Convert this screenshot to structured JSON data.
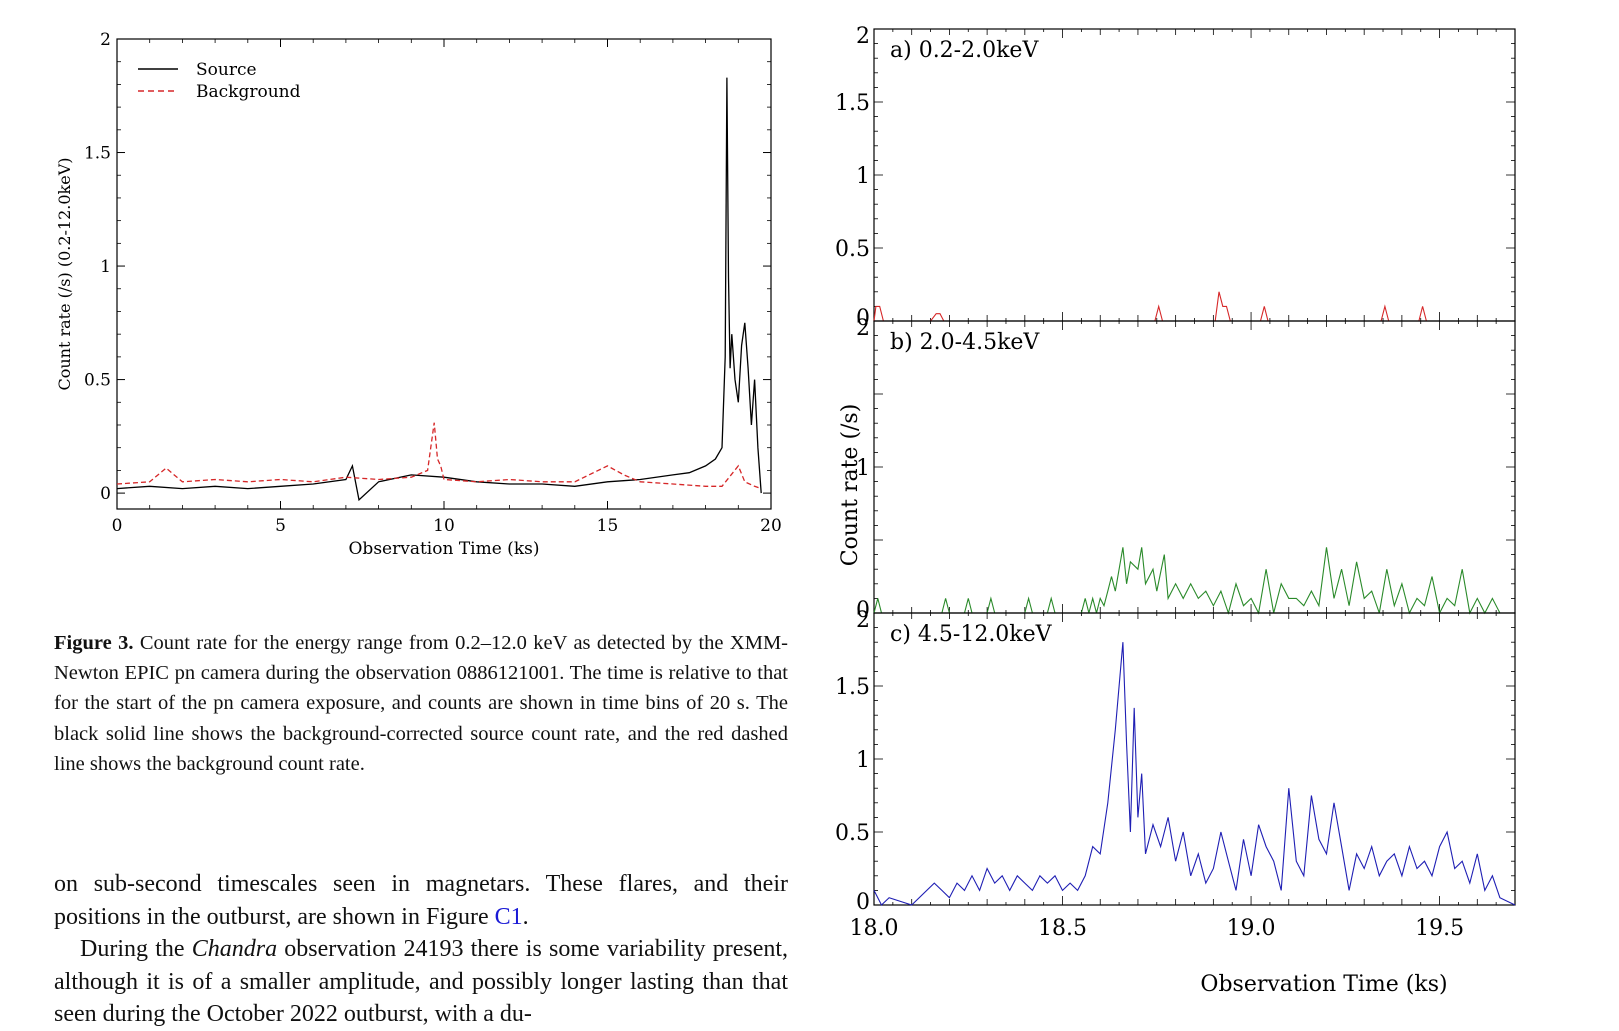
{
  "figure3": {
    "chart_data": {
      "type": "line",
      "xlabel": "Observation Time (ks)",
      "ylabel": "Count rate (/s) (0.2-12.0keV)",
      "xlim": [
        0,
        20
      ],
      "ylim": [
        -0.07,
        2
      ],
      "xticks": [
        "0",
        "5",
        "10",
        "15",
        "20"
      ],
      "yticks": [
        "0",
        "0.5",
        "1",
        "1.5",
        "2"
      ],
      "legend_position": "top-left",
      "series": [
        {
          "name": "Source",
          "color": "#000000",
          "style": "solid",
          "x": [
            0,
            1,
            2,
            3,
            4,
            5,
            6,
            7,
            7.2,
            7.4,
            8,
            9,
            10,
            11,
            12,
            13,
            14,
            15,
            16,
            17,
            17.5,
            18,
            18.3,
            18.5,
            18.6,
            18.65,
            18.7,
            18.75,
            18.8,
            18.9,
            19.0,
            19.1,
            19.2,
            19.3,
            19.4,
            19.5,
            19.6,
            19.7
          ],
          "y": [
            0.02,
            0.03,
            0.02,
            0.03,
            0.02,
            0.03,
            0.04,
            0.06,
            0.12,
            -0.03,
            0.05,
            0.08,
            0.07,
            0.05,
            0.04,
            0.04,
            0.03,
            0.05,
            0.06,
            0.08,
            0.09,
            0.12,
            0.15,
            0.2,
            0.6,
            1.83,
            0.95,
            0.55,
            0.7,
            0.5,
            0.4,
            0.65,
            0.75,
            0.55,
            0.3,
            0.5,
            0.2,
            0.0
          ]
        },
        {
          "name": "Background",
          "color": "#d62728",
          "style": "dashed",
          "x": [
            0,
            1,
            1.5,
            2,
            3,
            4,
            5,
            6,
            7,
            8,
            9,
            9.5,
            9.7,
            9.8,
            9.9,
            10,
            11,
            12,
            13,
            14,
            15,
            15.5,
            16,
            17,
            18,
            18.5,
            19,
            19.2,
            19.5,
            19.7
          ],
          "y": [
            0.04,
            0.05,
            0.11,
            0.05,
            0.06,
            0.05,
            0.06,
            0.05,
            0.07,
            0.06,
            0.07,
            0.1,
            0.31,
            0.15,
            0.12,
            0.06,
            0.05,
            0.06,
            0.05,
            0.05,
            0.12,
            0.08,
            0.05,
            0.04,
            0.03,
            0.03,
            0.12,
            0.05,
            0.03,
            0.02
          ]
        }
      ]
    }
  },
  "figure_right": {
    "chart_data": [
      {
        "type": "line",
        "panel_label": "a) 0.2-2.0keV",
        "color": "#d62728",
        "xlim": [
          18.0,
          19.7
        ],
        "ylim": [
          0,
          2
        ],
        "yticks": [
          "0",
          "0.5",
          "1",
          "1.5",
          "2"
        ],
        "x": [
          18.0,
          18.005,
          18.015,
          18.025,
          18.15,
          18.165,
          18.175,
          18.185,
          18.745,
          18.755,
          18.765,
          18.905,
          18.915,
          18.925,
          18.935,
          18.945,
          19.025,
          19.035,
          19.045,
          19.345,
          19.355,
          19.365,
          19.445,
          19.455,
          19.465,
          19.7
        ],
        "y": [
          0,
          0.1,
          0.1,
          0,
          0,
          0.05,
          0.05,
          0,
          0,
          0.1,
          0,
          0,
          0.2,
          0.1,
          0.1,
          0,
          0,
          0.1,
          0,
          0,
          0.1,
          0,
          0,
          0.1,
          0,
          0
        ]
      },
      {
        "type": "line",
        "panel_label": "b) 2.0-4.5keV",
        "color": "#2a8a2a",
        "xlim": [
          18.0,
          19.7
        ],
        "ylim": [
          0,
          2
        ],
        "yticks": [
          "0",
          "1",
          "2"
        ],
        "ylabel": "Count rate (/s)",
        "x": [
          18.0,
          18.01,
          18.02,
          18.18,
          18.19,
          18.2,
          18.24,
          18.25,
          18.26,
          18.3,
          18.31,
          18.32,
          18.4,
          18.41,
          18.42,
          18.46,
          18.47,
          18.48,
          18.55,
          18.56,
          18.57,
          18.58,
          18.59,
          18.6,
          18.61,
          18.62,
          18.63,
          18.64,
          18.66,
          18.67,
          18.68,
          18.7,
          18.71,
          18.72,
          18.74,
          18.75,
          18.77,
          18.78,
          18.8,
          18.82,
          18.84,
          18.86,
          18.88,
          18.9,
          18.92,
          18.94,
          18.96,
          18.98,
          19.0,
          19.02,
          19.04,
          19.06,
          19.08,
          19.1,
          19.12,
          19.14,
          19.16,
          19.18,
          19.2,
          19.22,
          19.24,
          19.26,
          19.28,
          19.3,
          19.32,
          19.34,
          19.36,
          19.38,
          19.4,
          19.42,
          19.44,
          19.46,
          19.48,
          19.5,
          19.52,
          19.54,
          19.56,
          19.58,
          19.6,
          19.62,
          19.64,
          19.66,
          19.7
        ],
        "y": [
          0,
          0.1,
          0,
          0,
          0.1,
          0,
          0,
          0.1,
          0,
          0,
          0.1,
          0,
          0,
          0.1,
          0,
          0,
          0.1,
          0,
          0,
          0.1,
          0,
          0.1,
          0,
          0.1,
          0.05,
          0.15,
          0.25,
          0.15,
          0.45,
          0.2,
          0.35,
          0.3,
          0.45,
          0.2,
          0.3,
          0.15,
          0.4,
          0.1,
          0.2,
          0.1,
          0.2,
          0.1,
          0.15,
          0.05,
          0.15,
          0,
          0.2,
          0.05,
          0.1,
          0,
          0.3,
          0,
          0.2,
          0.1,
          0.1,
          0.05,
          0.15,
          0.05,
          0.45,
          0.1,
          0.3,
          0.05,
          0.35,
          0.1,
          0.15,
          0,
          0.3,
          0.05,
          0.2,
          0,
          0.1,
          0.05,
          0.25,
          0,
          0.1,
          0.05,
          0.3,
          0,
          0.1,
          0,
          0.1,
          0,
          0
        ]
      },
      {
        "type": "line",
        "panel_label": "c) 4.5-12.0keV",
        "color": "#1f1fb4",
        "xlim": [
          18.0,
          19.7
        ],
        "ylim": [
          0,
          2
        ],
        "xticks": [
          "18.0",
          "18.5",
          "19.0",
          "19.5"
        ],
        "yticks": [
          "0",
          "0.5",
          "1",
          "1.5",
          "2"
        ],
        "xlabel": "Observation Time (ks)",
        "x": [
          18.0,
          18.02,
          18.04,
          18.1,
          18.16,
          18.18,
          18.2,
          18.22,
          18.24,
          18.26,
          18.28,
          18.3,
          18.32,
          18.34,
          18.36,
          18.38,
          18.4,
          18.42,
          18.44,
          18.46,
          18.48,
          18.5,
          18.52,
          18.54,
          18.56,
          18.58,
          18.6,
          18.62,
          18.64,
          18.66,
          18.67,
          18.68,
          18.69,
          18.7,
          18.71,
          18.72,
          18.74,
          18.76,
          18.78,
          18.8,
          18.82,
          18.84,
          18.86,
          18.88,
          18.9,
          18.92,
          18.94,
          18.96,
          18.98,
          19.0,
          19.02,
          19.04,
          19.06,
          19.08,
          19.1,
          19.12,
          19.14,
          19.16,
          19.18,
          19.2,
          19.22,
          19.24,
          19.26,
          19.28,
          19.3,
          19.32,
          19.34,
          19.36,
          19.38,
          19.4,
          19.42,
          19.44,
          19.46,
          19.48,
          19.5,
          19.52,
          19.54,
          19.56,
          19.58,
          19.6,
          19.62,
          19.64,
          19.66,
          19.7
        ],
        "y": [
          0.1,
          0,
          0.05,
          0,
          0.15,
          0.1,
          0.05,
          0.15,
          0.1,
          0.2,
          0.1,
          0.25,
          0.15,
          0.2,
          0.1,
          0.2,
          0.15,
          0.1,
          0.2,
          0.15,
          0.2,
          0.1,
          0.15,
          0.1,
          0.2,
          0.4,
          0.35,
          0.7,
          1.2,
          1.8,
          1.1,
          0.5,
          1.35,
          0.6,
          0.9,
          0.35,
          0.55,
          0.4,
          0.6,
          0.3,
          0.5,
          0.2,
          0.35,
          0.15,
          0.25,
          0.5,
          0.3,
          0.1,
          0.45,
          0.2,
          0.55,
          0.4,
          0.3,
          0.1,
          0.8,
          0.3,
          0.2,
          0.75,
          0.45,
          0.35,
          0.7,
          0.4,
          0.1,
          0.35,
          0.25,
          0.4,
          0.2,
          0.3,
          0.35,
          0.2,
          0.4,
          0.25,
          0.3,
          0.2,
          0.4,
          0.5,
          0.25,
          0.3,
          0.15,
          0.35,
          0.1,
          0.2,
          0.05,
          0
        ]
      }
    ]
  },
  "caption": {
    "label": "Figure 3.",
    "text": " Count rate for the energy range from 0.2–12.0 keV as detected by the XMM-Newton EPIC pn camera during the observation 0886121001. The time is relative to that for the start of the pn camera exposure, and counts are shown in time bins of 20 s. The black solid line shows the background-corrected source count rate, and the red dashed line shows the background count rate."
  },
  "body": {
    "p1_text": "on sub-second timescales seen in magnetars. These flares, and their positions in the outburst, are shown in Figure ",
    "p1_link": "C1",
    "p1_end": ".",
    "p2_start": "During the ",
    "p2_italic": "Chandra",
    "p2_text": " observation 24193 there is some variability present, although it is of a smaller amplitude, and possibly longer lasting than that seen during the October 2022 outburst, with a du-"
  }
}
